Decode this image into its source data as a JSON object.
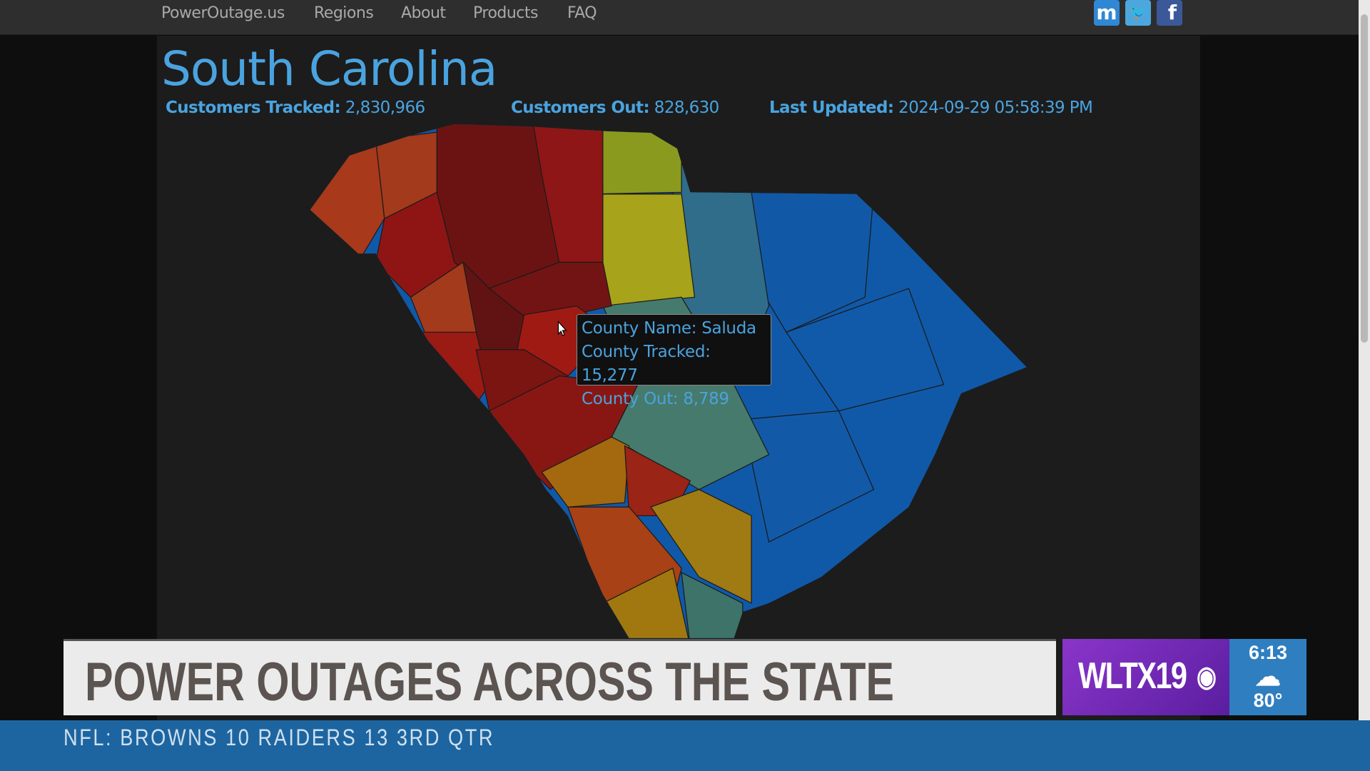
{
  "nav": {
    "items": [
      "PowerOutage.us",
      "Regions",
      "About",
      "Products",
      "FAQ"
    ],
    "social": [
      {
        "icon": "mastodon-icon",
        "glyph": "m",
        "color": "#3088d4"
      },
      {
        "icon": "twitter-icon",
        "glyph": "🐦",
        "color": "#4da7de"
      },
      {
        "icon": "facebook-icon",
        "glyph": "f",
        "color": "#3b5998"
      }
    ]
  },
  "page": {
    "title": "South Carolina",
    "stats": {
      "tracked_label": "Customers Tracked:",
      "tracked": "2,830,966",
      "out_label": "Customers Out:",
      "out": "828,630",
      "updated_label": "Last Updated:",
      "updated": "2024-09-29 05:58:39 PM"
    }
  },
  "tooltip": {
    "name": "County Name: Saluda",
    "tracked": "County Tracked: 15,277",
    "out": "County Out: 8,789"
  },
  "colors": {
    "accent": "#4aa3df",
    "low": "#1059a8",
    "high": "#6b1313"
  },
  "broadcast": {
    "headline": "POWER OUTAGES ACROSS THE STATE",
    "station": "WLTX19",
    "time": "6:13",
    "weather_icon": "cloud-icon",
    "temp": "80°",
    "ticker": "NFL: BROWNS 10  RAIDERS 13   3RD QTR"
  }
}
